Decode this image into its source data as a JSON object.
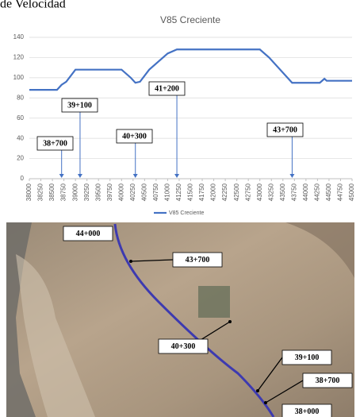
{
  "header_text": "de Velocidad",
  "chart_data": {
    "type": "line",
    "title": "V85 Creciente",
    "series": [
      {
        "name": "V85 Creciente",
        "color": "#4472c4",
        "x": [
          38000,
          38600,
          38700,
          38800,
          39000,
          39100,
          40000,
          40200,
          40300,
          40400,
          40600,
          41000,
          41200,
          43000,
          43200,
          43600,
          43700,
          44300,
          44400,
          44450,
          45000
        ],
        "values": [
          88,
          88,
          93,
          96,
          108,
          108,
          108,
          100,
          95,
          96,
          108,
          124,
          128,
          128,
          120,
          100,
          95,
          95,
          99,
          97,
          97
        ]
      }
    ],
    "xlim": [
      38000,
      45000
    ],
    "xticks": [
      38000,
      38250,
      38500,
      38750,
      39000,
      39250,
      39500,
      39750,
      40000,
      40250,
      40500,
      40750,
      41000,
      41250,
      41500,
      41750,
      42000,
      42250,
      42500,
      42750,
      43000,
      43250,
      43500,
      43750,
      44000,
      44250,
      44500,
      44750,
      45000
    ],
    "ylim": [
      0,
      140
    ],
    "yticks": [
      0,
      20,
      40,
      60,
      80,
      100,
      120,
      140
    ],
    "grid": true,
    "annotations": [
      {
        "label": "38+700",
        "x": 38700
      },
      {
        "label": "39+100",
        "x": 39100
      },
      {
        "label": "40+300",
        "x": 40300
      },
      {
        "label": "41+200",
        "x": 41200
      },
      {
        "label": "43+700",
        "x": 43700
      }
    ],
    "legend": "bottom"
  },
  "map": {
    "labels": [
      "44+000",
      "43+700",
      "40+300",
      "39+100",
      "38+700",
      "38+000"
    ]
  }
}
